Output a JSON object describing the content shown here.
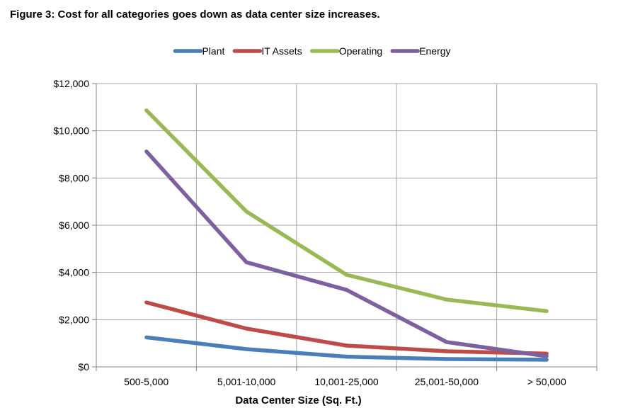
{
  "title": "Figure 3: Cost for all categories goes down as data center size increases.",
  "chart_data": {
    "type": "line",
    "categories": [
      "500-5,000",
      "5,001-10,000",
      "10,001-25,000",
      "25,001-50,000",
      "> 50,000"
    ],
    "series": [
      {
        "name": "Plant",
        "color": "#4A7EBB",
        "values": [
          1250,
          750,
          430,
          330,
          300
        ]
      },
      {
        "name": "IT Assets",
        "color": "#BE4B48",
        "values": [
          2730,
          1620,
          900,
          660,
          560
        ]
      },
      {
        "name": "Operating",
        "color": "#98B954",
        "values": [
          10870,
          6580,
          3900,
          2850,
          2360
        ]
      },
      {
        "name": "Energy",
        "color": "#7D60A0",
        "values": [
          9130,
          4430,
          3260,
          1050,
          450
        ]
      }
    ],
    "xlabel": "Data Center Size (Sq. Ft.)",
    "ylabel": "",
    "ylim": [
      0,
      12000
    ],
    "yticks": [
      0,
      2000,
      4000,
      6000,
      8000,
      10000,
      12000
    ],
    "ytick_labels": [
      "$0",
      "$2,000",
      "$4,000",
      "$6,000",
      "$8,000",
      "$10,000",
      "$12,000"
    ],
    "grid": true,
    "legend": "top"
  }
}
